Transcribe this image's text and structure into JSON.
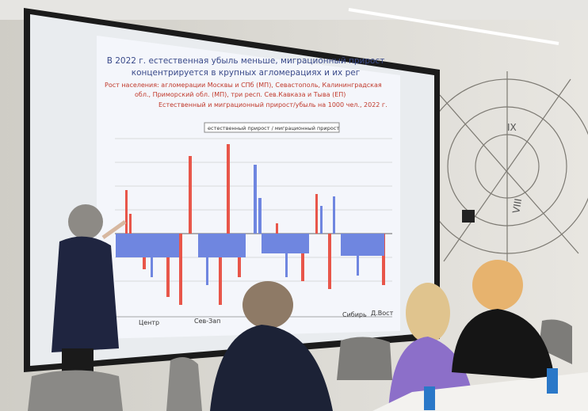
{
  "slide": {
    "title": "В 2022 г. естественная убыль меньше, миграционный прирост",
    "title_2": "концентрируется в крупных агломерациях и их рег",
    "subtitle": "Рост населения: агломерации Москвы и СПб (МП), Севастополь, Калининградская",
    "subtitle_2": "обл., Приморский обл. (МП), три респ. Сев.Кавказа и Тыва (ЕП)",
    "caption": "Естественный и миграционный прирост/убыль на 1000 чел., 2022 г.",
    "legend": "естественный прирост / миграционный прирост",
    "regions": [
      "Центр",
      "Сев-Зап",
      "Сибирь",
      "Д.Вост"
    ]
  },
  "wall": {
    "numerals": [
      "IX",
      "VIII"
    ]
  }
}
